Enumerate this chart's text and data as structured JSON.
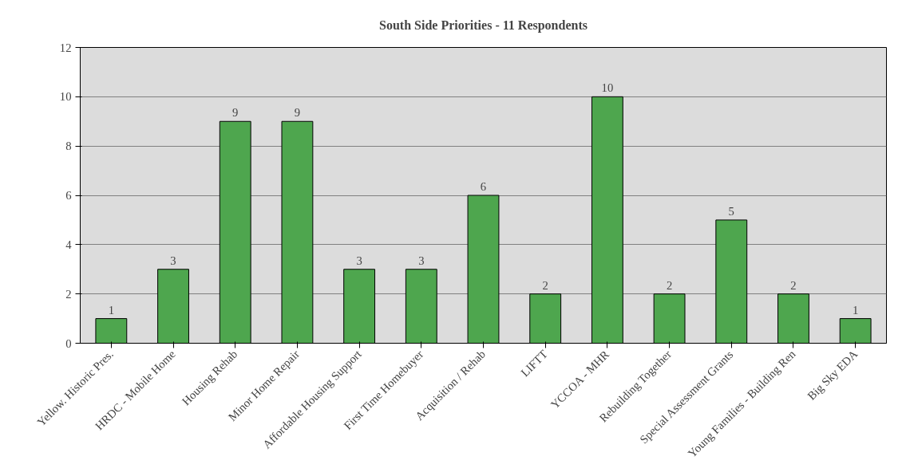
{
  "chart_data": {
    "type": "bar",
    "title": "South Side Priorities - 11 Respondents",
    "categories": [
      "Yellow. Historic Pres.",
      "HRDC - Mobile Home",
      "Housing Rehab",
      "Minor Home Repair",
      "Affordable Housing Support",
      "First Time Homebuyer",
      "Acquisition / Rehab",
      "LIFTT",
      "YCCOA - MHR",
      "Rebuilding Together",
      "Special Assessment Grants",
      "Young Families - Building Ren",
      "Big Sky EDA"
    ],
    "values": [
      1,
      3,
      9,
      9,
      3,
      3,
      6,
      2,
      10,
      2,
      5,
      2,
      1
    ],
    "color": "#4ea64e",
    "ylim": [
      0,
      12
    ],
    "yticks": [
      0,
      2,
      4,
      6,
      8,
      10,
      12
    ],
    "grid": "y",
    "data_labels": true
  }
}
